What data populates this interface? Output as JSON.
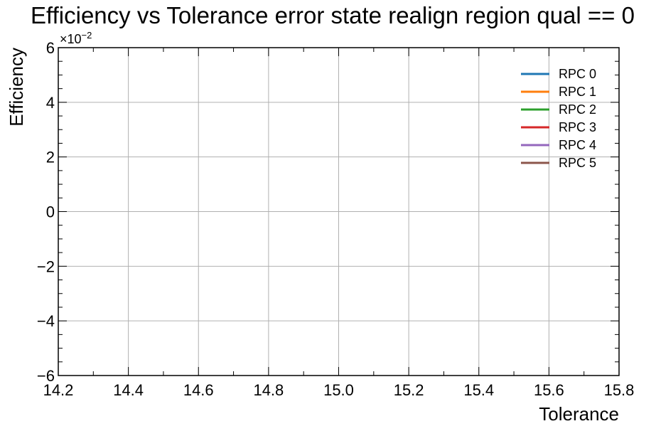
{
  "chart_data": {
    "type": "line",
    "title": "Efficiency vs Tolerance error state realign region qual == 0",
    "xlabel": "Tolerance",
    "ylabel": "Efficiency",
    "xlim": [
      14.2,
      15.8
    ],
    "ylim": [
      -0.06,
      0.06
    ],
    "x_ticks": [
      14.2,
      14.4,
      14.6,
      14.8,
      15.0,
      15.2,
      15.4,
      15.6,
      15.8
    ],
    "x_tick_labels": [
      "14.2",
      "14.4",
      "14.6",
      "14.8",
      "15.0",
      "15.2",
      "15.4",
      "15.6",
      "15.8"
    ],
    "y_ticks": [
      -0.06,
      -0.04,
      -0.02,
      0,
      0.02,
      0.04,
      0.06
    ],
    "y_tick_labels": [
      "−6",
      "−4",
      "−2",
      "0",
      "2",
      "4",
      "6"
    ],
    "y_offset_base": "×10",
    "y_offset_exp": "−2",
    "grid": true,
    "legend_position": "top-right",
    "series": [
      {
        "name": "RPC 0",
        "color": "#1f77b4",
        "x": [],
        "y": []
      },
      {
        "name": "RPC 1",
        "color": "#ff7f0e",
        "x": [],
        "y": []
      },
      {
        "name": "RPC 2",
        "color": "#2ca02c",
        "x": [],
        "y": []
      },
      {
        "name": "RPC 3",
        "color": "#d62728",
        "x": [],
        "y": []
      },
      {
        "name": "RPC 4",
        "color": "#9467bd",
        "x": [],
        "y": []
      },
      {
        "name": "RPC 5",
        "color": "#8c564b",
        "x": [],
        "y": []
      }
    ]
  }
}
